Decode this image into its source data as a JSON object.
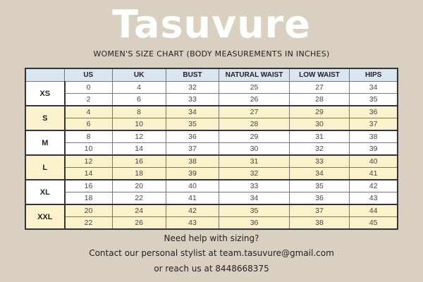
{
  "brand": "Tasuvure",
  "subtitle": "WOMEN'S SIZE CHART (BODY MEASUREMENTS IN INCHES)",
  "colors": {
    "background": "#d9d0c2",
    "header": "#dbe4f1",
    "highlight_row": "#fbf2cc"
  },
  "table": {
    "headers": [
      "",
      "US",
      "UK",
      "BUST",
      "NATURAL WAIST",
      "LOW WAIST",
      "HIPS"
    ],
    "groups": [
      {
        "size": "XS",
        "highlight": false,
        "rows": [
          [
            "0",
            "4",
            "32",
            "25",
            "27",
            "34"
          ],
          [
            "2",
            "6",
            "33",
            "26",
            "28",
            "35"
          ]
        ]
      },
      {
        "size": "S",
        "highlight": true,
        "rows": [
          [
            "4",
            "8",
            "34",
            "27",
            "29",
            "36"
          ],
          [
            "6",
            "10",
            "35",
            "28",
            "30",
            "37"
          ]
        ]
      },
      {
        "size": "M",
        "highlight": false,
        "rows": [
          [
            "8",
            "12",
            "36",
            "29",
            "31",
            "38"
          ],
          [
            "10",
            "14",
            "37",
            "30",
            "32",
            "39"
          ]
        ]
      },
      {
        "size": "L",
        "highlight": true,
        "rows": [
          [
            "12",
            "16",
            "38",
            "31",
            "33",
            "40"
          ],
          [
            "14",
            "18",
            "39",
            "32",
            "34",
            "41"
          ]
        ]
      },
      {
        "size": "XL",
        "highlight": false,
        "rows": [
          [
            "16",
            "20",
            "40",
            "33",
            "35",
            "42"
          ],
          [
            "18",
            "22",
            "41",
            "34",
            "36",
            "43"
          ]
        ]
      },
      {
        "size": "XXL",
        "highlight": true,
        "rows": [
          [
            "20",
            "24",
            "42",
            "35",
            "37",
            "44"
          ],
          [
            "22",
            "26",
            "43",
            "36",
            "38",
            "45"
          ]
        ]
      }
    ]
  },
  "footer": {
    "line1": "Need help with sizing?",
    "line2": "Contact our personal stylist at team.tasuvure@gmail.com",
    "line3": "or reach us at 8448668375"
  }
}
